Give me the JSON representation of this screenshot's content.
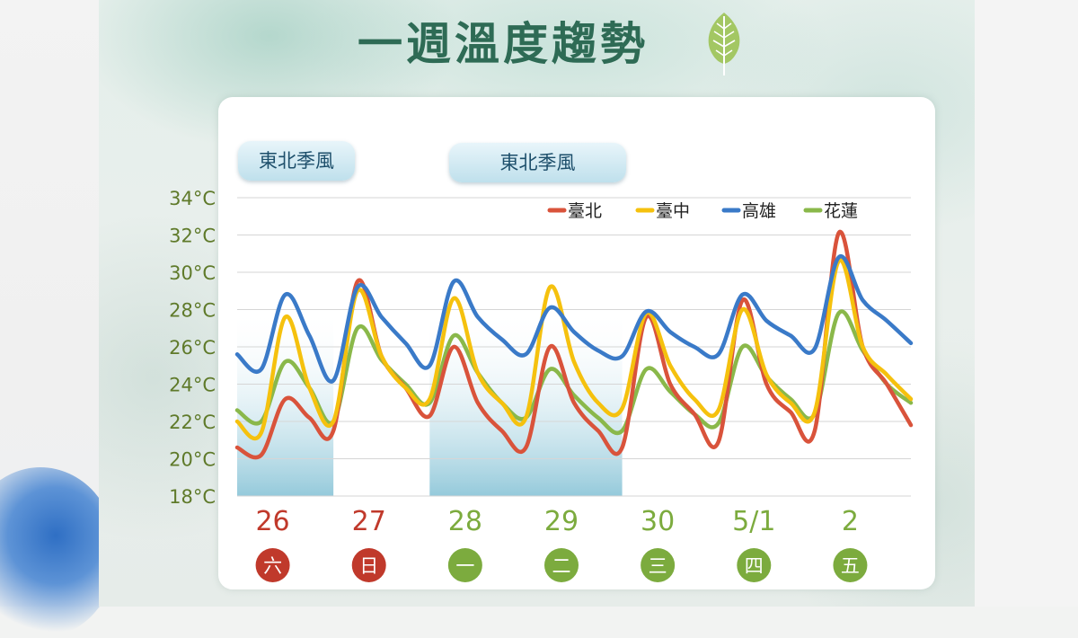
{
  "title": "一週溫度趨勢",
  "leaf_icon": "leaf-icon",
  "monsoon_labels": [
    "東北季風",
    "東北季風"
  ],
  "colors": {
    "title": "#2e6b55",
    "weekend": "#c0392b",
    "weekday": "#7cab3e",
    "shade": "#a9d3e0"
  },
  "chart_data": {
    "type": "line",
    "title": "一週溫度趨勢",
    "xlabel": "",
    "ylabel": "",
    "ylim": [
      18,
      34
    ],
    "yticks": [
      "34°C",
      "32°C",
      "30°C",
      "28°C",
      "26°C",
      "24°C",
      "22°C",
      "20°C",
      "18°C"
    ],
    "grid": true,
    "legend": "top-right",
    "days": [
      {
        "date": "26",
        "dow": "六",
        "weekend": true
      },
      {
        "date": "27",
        "dow": "日",
        "weekend": true
      },
      {
        "date": "28",
        "dow": "一",
        "weekend": false
      },
      {
        "date": "29",
        "dow": "二",
        "weekend": false
      },
      {
        "date": "30",
        "dow": "三",
        "weekend": false
      },
      {
        "date": "5/1",
        "dow": "四",
        "weekend": false
      },
      {
        "date": "2",
        "dow": "五",
        "weekend": false
      }
    ],
    "x_hours": [
      0,
      6,
      12,
      18,
      24,
      30,
      36,
      42,
      48,
      54,
      60,
      66,
      72,
      78,
      84,
      90,
      96,
      102,
      108,
      114,
      120,
      126,
      132,
      138,
      144,
      150,
      156,
      162,
      168
    ],
    "monsoon_periods": [
      [
        0,
        24
      ],
      [
        48,
        96
      ]
    ],
    "series": [
      {
        "name": "臺北",
        "color": "#d9533b",
        "values": [
          20.6,
          20.2,
          23.2,
          22.2,
          21.5,
          29.5,
          25.5,
          23.8,
          22.3,
          26.0,
          23.0,
          21.5,
          20.6,
          26.0,
          23.0,
          21.5,
          20.6,
          27.6,
          24.0,
          22.4,
          20.9,
          28.5,
          24.0,
          22.5,
          21.5,
          32.1,
          26.0,
          24.0,
          21.8
        ]
      },
      {
        "name": "臺中",
        "color": "#f5c10e",
        "values": [
          22.0,
          21.4,
          27.6,
          23.8,
          22.0,
          29.0,
          25.5,
          23.8,
          23.2,
          28.6,
          24.6,
          23.0,
          22.2,
          29.2,
          25.2,
          23.0,
          22.7,
          27.8,
          25.0,
          23.2,
          22.6,
          28.0,
          24.5,
          23.0,
          22.5,
          30.6,
          26.0,
          24.5,
          23.2
        ]
      },
      {
        "name": "高雄",
        "color": "#3a7ac8",
        "values": [
          25.6,
          24.8,
          28.8,
          26.6,
          24.2,
          29.2,
          27.6,
          26.2,
          25.0,
          29.5,
          27.6,
          26.4,
          25.6,
          28.1,
          26.8,
          25.8,
          25.5,
          27.9,
          26.8,
          26.0,
          25.6,
          28.8,
          27.4,
          26.6,
          25.9,
          30.8,
          28.5,
          27.4,
          26.2
        ]
      },
      {
        "name": "花蓮",
        "color": "#8ab84a",
        "values": [
          22.6,
          22.0,
          25.2,
          23.8,
          22.0,
          27.0,
          25.3,
          24.0,
          23.0,
          26.6,
          24.6,
          23.0,
          22.2,
          24.8,
          23.4,
          22.2,
          21.5,
          24.8,
          23.6,
          22.4,
          21.9,
          26.0,
          24.4,
          23.2,
          22.4,
          27.8,
          25.8,
          24.0,
          23.0
        ]
      }
    ]
  }
}
